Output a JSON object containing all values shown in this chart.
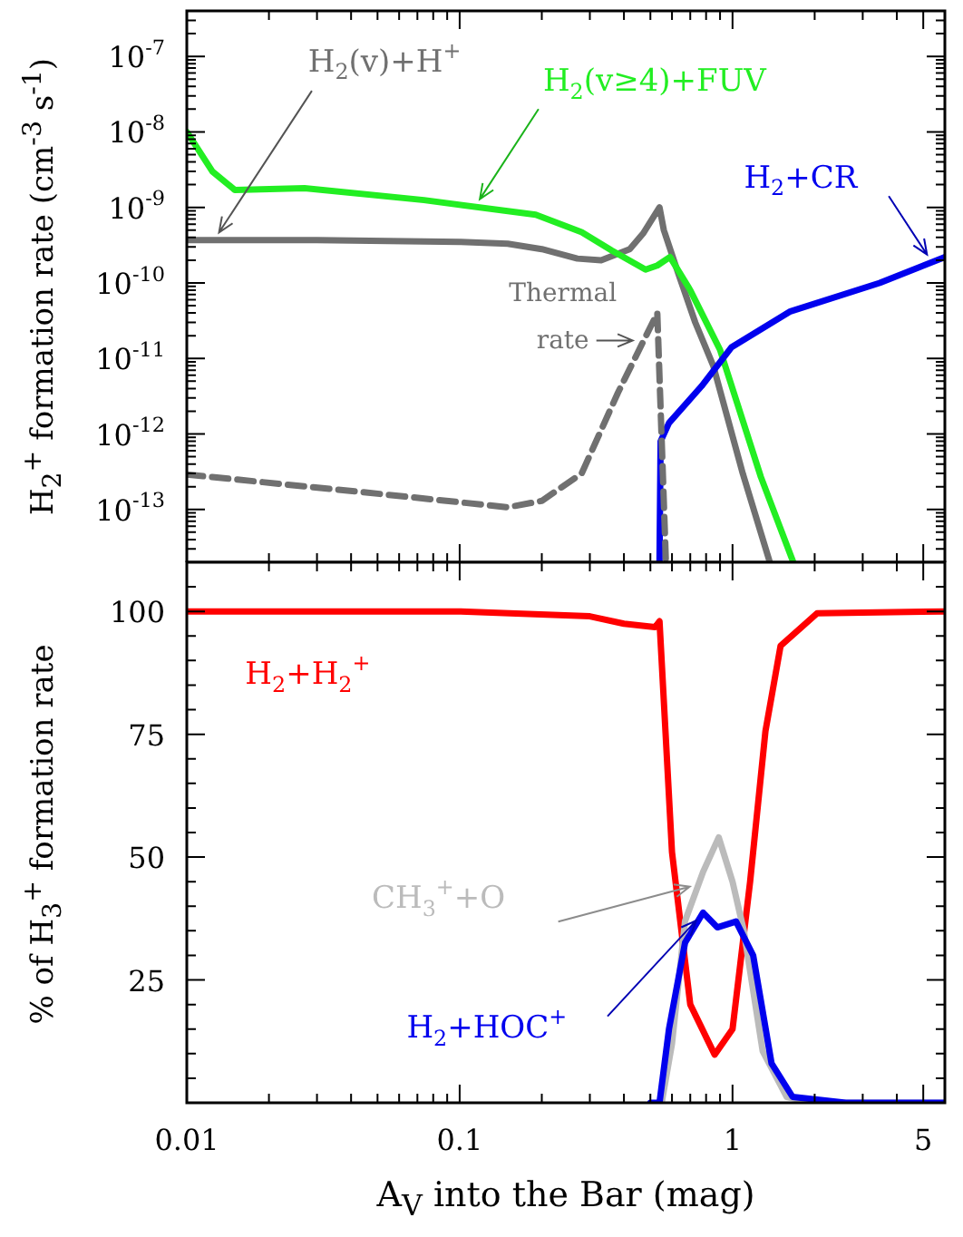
{
  "chart_data": [
    {
      "type": "line",
      "ylabel": "H$_{2}$$^{+}$ formation rate (cm$^{-3}$ s$^{-1}$)",
      "log": "xy",
      "xlim": [
        0.01,
        6
      ],
      "ylim": [
        2e-14,
        4e-07
      ],
      "tick_labels": "y",
      "legend": false,
      "grid": false,
      "marker": "none",
      "line_style": "solid",
      "xticks": [
        0.01,
        {
          "value": 0.02,
          "label": null
        },
        {
          "value": 0.03,
          "label": null
        },
        {
          "value": 0.04,
          "label": null
        },
        {
          "value": 0.05,
          "label": null
        },
        {
          "value": 0.06,
          "label": null
        },
        {
          "value": 0.07,
          "label": null
        },
        {
          "value": 0.08,
          "label": null
        },
        {
          "value": 0.09,
          "label": null
        },
        0.1,
        {
          "value": 0.2,
          "label": null
        },
        {
          "value": 0.3,
          "label": null
        },
        {
          "value": 0.4,
          "label": null
        },
        {
          "value": 0.5,
          "label": null
        },
        {
          "value": 0.6,
          "label": null
        },
        {
          "value": 0.7,
          "label": null
        },
        {
          "value": 0.8,
          "label": null
        },
        {
          "value": 0.9,
          "label": null
        },
        1,
        {
          "value": 2,
          "label": null
        },
        {
          "value": 3,
          "label": null
        },
        {
          "value": 4,
          "label": null
        },
        5
      ],
      "yticks": [
        {
          "value": 3e-14,
          "label": null
        },
        {
          "value": 4e-14,
          "label": null
        },
        {
          "value": 5e-14,
          "label": null
        },
        {
          "value": 6e-14,
          "label": null
        },
        {
          "value": 7e-14,
          "label": null
        },
        {
          "value": 8e-14,
          "label": null
        },
        {
          "value": 9e-14,
          "label": null
        },
        {
          "value": 1e-13,
          "label": "10$^{-13}$"
        },
        {
          "value": 2e-13,
          "label": null
        },
        {
          "value": 3e-13,
          "label": null
        },
        {
          "value": 4e-13,
          "label": null
        },
        {
          "value": 5e-13,
          "label": null
        },
        {
          "value": 6e-13,
          "label": null
        },
        {
          "value": 7e-13,
          "label": null
        },
        {
          "value": 8e-13,
          "label": null
        },
        {
          "value": 9e-13,
          "label": null
        },
        {
          "value": 1e-12,
          "label": "10$^{-12}$"
        },
        {
          "value": 2e-12,
          "label": null
        },
        {
          "value": 3e-12,
          "label": null
        },
        {
          "value": 4e-12,
          "label": null
        },
        {
          "value": 5e-12,
          "label": null
        },
        {
          "value": 6e-12,
          "label": null
        },
        {
          "value": 7e-12,
          "label": null
        },
        {
          "value": 8e-12,
          "label": null
        },
        {
          "value": 9e-12,
          "label": null
        },
        {
          "value": 1e-11,
          "label": "10$^{-11}$"
        },
        {
          "value": 2e-11,
          "label": null
        },
        {
          "value": 3e-11,
          "label": null
        },
        {
          "value": 4e-11,
          "label": null
        },
        {
          "value": 5e-11,
          "label": null
        },
        {
          "value": 6e-11,
          "label": null
        },
        {
          "value": 7e-11,
          "label": null
        },
        {
          "value": 8e-11,
          "label": null
        },
        {
          "value": 9e-11,
          "label": null
        },
        {
          "value": 1e-10,
          "label": "10$^{-10}$"
        },
        {
          "value": 2e-10,
          "label": null
        },
        {
          "value": 3e-10,
          "label": null
        },
        {
          "value": 4e-10,
          "label": null
        },
        {
          "value": 5e-10,
          "label": null
        },
        {
          "value": 6e-10,
          "label": null
        },
        {
          "value": 7e-10,
          "label": null
        },
        {
          "value": 8e-10,
          "label": null
        },
        {
          "value": 9e-10,
          "label": null
        },
        {
          "value": 1e-09,
          "label": "10$^{-9}$"
        },
        {
          "value": 2e-09,
          "label": null
        },
        {
          "value": 3e-09,
          "label": null
        },
        {
          "value": 4e-09,
          "label": null
        },
        {
          "value": 5e-09,
          "label": null
        },
        {
          "value": 6e-09,
          "label": null
        },
        {
          "value": 7e-09,
          "label": null
        },
        {
          "value": 8e-09,
          "label": null
        },
        {
          "value": 9e-09,
          "label": null
        },
        {
          "value": 1e-08,
          "label": "10$^{-8}$"
        },
        {
          "value": 2e-08,
          "label": null
        },
        {
          "value": 3e-08,
          "label": null
        },
        {
          "value": 4e-08,
          "label": null
        },
        {
          "value": 5e-08,
          "label": null
        },
        {
          "value": 6e-08,
          "label": null
        },
        {
          "value": 7e-08,
          "label": null
        },
        {
          "value": 8e-08,
          "label": null
        },
        {
          "value": 9e-08,
          "label": null
        },
        {
          "value": 1e-07,
          "label": "10$^{-7}$"
        },
        {
          "value": 2e-07,
          "label": null
        },
        {
          "value": 3e-07,
          "label": null
        }
      ],
      "series": [
        {
          "name": "H$_{2}$(v)+H$^{+}$",
          "color": "#707070",
          "x": [
            0.01,
            0.03,
            0.1,
            0.15,
            0.2,
            0.27,
            0.33,
            0.42,
            0.47,
            0.54,
            0.56,
            0.63,
            0.73,
            0.85,
            1.09,
            1.37
          ],
          "values": [
            3.7e-10,
            3.7e-10,
            3.5e-10,
            3.3e-10,
            2.8e-10,
            2.1e-10,
            2e-10,
            2.8e-10,
            4.5e-10,
            1e-09,
            5e-10,
            1.4e-10,
            3e-11,
            8e-12,
            3e-13,
            2e-14
          ]
        },
        {
          "name": "H$_{2}$(v≥4)+FUV",
          "color": "#22ee22",
          "x": [
            0.01,
            0.0124,
            0.015,
            0.027,
            0.074,
            0.19,
            0.28,
            0.36,
            0.48,
            0.53,
            0.59,
            0.7,
            0.9,
            1.27,
            1.67
          ],
          "values": [
            1e-08,
            3e-09,
            1.7e-09,
            1.8e-09,
            1.25e-09,
            8e-10,
            4.7e-10,
            2.7e-10,
            1.5e-10,
            1.7e-10,
            2.2e-10,
            8e-11,
            1.3e-11,
            2.7e-13,
            2e-14
          ]
        },
        {
          "name": "H$_{2}$+CR",
          "color": "#0000ee",
          "x": [
            0.54,
            0.545,
            0.585,
            0.77,
            0.99,
            1.63,
            3.46,
            6
          ],
          "values": [
            2e-14,
            8e-13,
            1.4e-12,
            4.3e-12,
            1.4e-11,
            4.2e-11,
            1e-10,
            2.2e-10
          ]
        },
        {
          "name": "Thermal rate",
          "color": "#707070",
          "line_style": "dashed",
          "x": [
            0.01,
            0.044,
            0.15,
            0.2,
            0.28,
            0.38,
            0.53,
            0.57
          ],
          "values": [
            2.9e-13,
            1.7e-13,
            1.07e-13,
            1.3e-13,
            3e-13,
            3.5e-12,
            4e-11,
            2e-14
          ]
        }
      ]
    },
    {
      "type": "line",
      "xlabel": "A$_{V}$ into the Bar (mag)",
      "ylabel": "% of H$_{3}$$^{+}$ formation rate",
      "log": "x",
      "xlim": [
        0.01,
        6
      ],
      "ylim": [
        0,
        110
      ],
      "legend": false,
      "grid": false,
      "marker": "none",
      "line_style": "solid",
      "xticks": [
        0.01,
        {
          "value": 0.02,
          "label": null
        },
        {
          "value": 0.03,
          "label": null
        },
        {
          "value": 0.04,
          "label": null
        },
        {
          "value": 0.05,
          "label": null
        },
        {
          "value": 0.06,
          "label": null
        },
        {
          "value": 0.07,
          "label": null
        },
        {
          "value": 0.08,
          "label": null
        },
        {
          "value": 0.09,
          "label": null
        },
        0.1,
        {
          "value": 0.2,
          "label": null
        },
        {
          "value": 0.3,
          "label": null
        },
        {
          "value": 0.4,
          "label": null
        },
        {
          "value": 0.5,
          "label": null
        },
        {
          "value": 0.6,
          "label": null
        },
        {
          "value": 0.7,
          "label": null
        },
        {
          "value": 0.8,
          "label": null
        },
        {
          "value": 0.9,
          "label": null
        },
        1,
        {
          "value": 2,
          "label": null
        },
        {
          "value": 3,
          "label": null
        },
        {
          "value": 4,
          "label": null
        },
        5
      ],
      "yticks": [
        {
          "value": 5,
          "label": null
        },
        {
          "value": 10,
          "label": null
        },
        {
          "value": 15,
          "label": null
        },
        {
          "value": 20,
          "label": null
        },
        25,
        {
          "value": 30,
          "label": null
        },
        {
          "value": 35,
          "label": null
        },
        {
          "value": 40,
          "label": null
        },
        {
          "value": 45,
          "label": null
        },
        50,
        {
          "value": 55,
          "label": null
        },
        {
          "value": 60,
          "label": null
        },
        {
          "value": 65,
          "label": null
        },
        {
          "value": 70,
          "label": null
        },
        75,
        {
          "value": 80,
          "label": null
        },
        {
          "value": 85,
          "label": null
        },
        {
          "value": 90,
          "label": null
        },
        {
          "value": 95,
          "label": null
        },
        100,
        {
          "value": 105,
          "label": null
        }
      ],
      "series": [
        {
          "name": "H$_{2}$+H$_{2}$$^{+}$",
          "color": "#ff0000",
          "x": [
            0.01,
            0.1,
            0.3,
            0.4,
            0.52,
            0.54,
            0.6,
            0.7,
            0.86,
            1.0,
            1.16,
            1.32,
            1.5,
            2.04,
            6
          ],
          "values": [
            100,
            100,
            99,
            97.5,
            96.8,
            98,
            51,
            20,
            9.8,
            15,
            45,
            75.6,
            93,
            99.6,
            100
          ]
        },
        {
          "name": "CH$_{3}$$^{+}$+O",
          "color": "#bbbbbb",
          "x": [
            0.55,
            0.6,
            0.67,
            0.78,
            0.89,
            1.0,
            1.1,
            1.29,
            1.58,
            2,
            6
          ],
          "values": [
            0,
            12,
            37,
            47,
            54,
            45,
            35,
            10.5,
            1.2,
            0,
            0
          ]
        },
        {
          "name": "H$_{2}$+HOC$^{+}$",
          "color": "#0000ee",
          "x": [
            0.5,
            0.54,
            0.585,
            0.67,
            0.78,
            0.88,
            1.03,
            1.19,
            1.39,
            1.66,
            2.6,
            6
          ],
          "values": [
            0,
            0,
            15,
            32.6,
            38.7,
            35.7,
            36.9,
            30,
            8,
            1.2,
            0,
            0
          ]
        }
      ]
    }
  ]
}
